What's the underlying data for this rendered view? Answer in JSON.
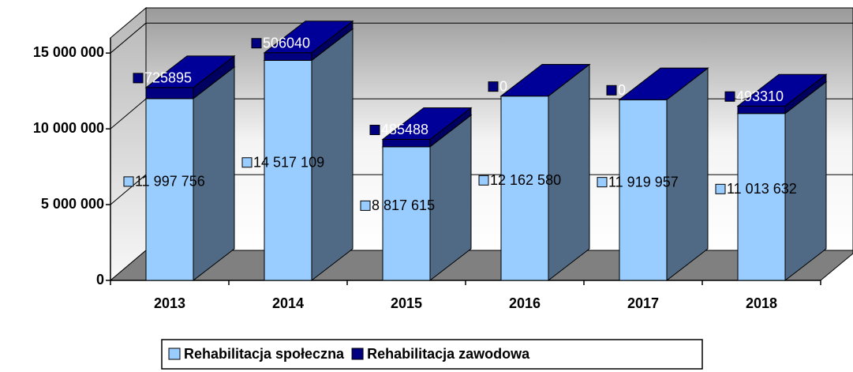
{
  "chart_data": {
    "type": "bar3d_stacked",
    "categories": [
      "2013",
      "2014",
      "2015",
      "2016",
      "2017",
      "2018"
    ],
    "series": [
      {
        "name": "Rehabilitacja społeczna",
        "color": "#99ccff",
        "values": [
          11997756,
          14517109,
          8817615,
          12162580,
          11919957,
          11013632
        ],
        "value_labels": [
          "11 997 756",
          "14 517 109",
          "8 817 615",
          "12 162 580",
          "11 919 957",
          "11 013 632"
        ]
      },
      {
        "name": "Rehabilitacja zawodowa",
        "color": "#000080",
        "values": [
          725895,
          506040,
          485488,
          0,
          0,
          493310
        ]
      }
    ],
    "ylim": [
      0,
      16000000
    ],
    "yticks": [
      0,
      {
        "value": 5000000,
        "label": "5 000 000"
      },
      {
        "value": 10000000,
        "label": "10 000 000"
      },
      {
        "value": 15000000,
        "label": "15 000 000"
      }
    ],
    "grid": true,
    "legend": "bottom"
  }
}
